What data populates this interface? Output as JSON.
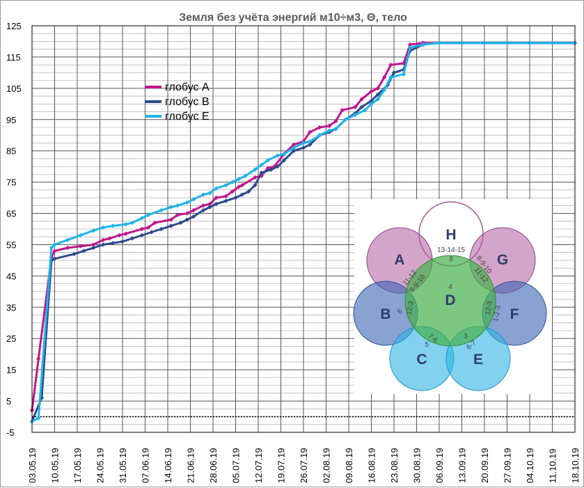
{
  "chart_data": {
    "type": "line",
    "title": "Земля  без учёта  энергий м10÷м3, Θ, тело",
    "ylim": [
      -5,
      125
    ],
    "yticks": [
      "-5",
      "5",
      "15",
      "25",
      "35",
      "45",
      "55",
      "65",
      "75",
      "85",
      "95",
      "105",
      "115",
      "125"
    ],
    "xlabels": [
      "03.05.19",
      "10.05.19",
      "17.05.19",
      "24.05.19",
      "31.05.19",
      "07.06.19",
      "14.06.19",
      "21.06.19",
      "28.06.19",
      "05.07.19",
      "12.07.19",
      "19.07.19",
      "26.07.19",
      "02.08.19",
      "09.08.19",
      "16.08.19",
      "23.08.19",
      "30.08.19",
      "06.09.19",
      "13.09.19",
      "20.09.19",
      "27.09.19",
      "04.10.19",
      "11.10.19",
      "18.10.19"
    ],
    "grid": true,
    "legend_position": "upper-left",
    "series": [
      {
        "name": "глобус A",
        "color": "#c0168c",
        "x": [
          0,
          2,
          6,
          7,
          11,
          15,
          19,
          22,
          24,
          27,
          29,
          34,
          36,
          38,
          43,
          45,
          48,
          50,
          53,
          55,
          57,
          60,
          62,
          64,
          65,
          69,
          71,
          73,
          75,
          78,
          81,
          84,
          86,
          89,
          92,
          94,
          96,
          100,
          102,
          105,
          107,
          109,
          111,
          115,
          117,
          121,
          126,
          133,
          140,
          147,
          154,
          161,
          168
        ],
        "y": [
          2,
          18.5,
          51,
          53,
          54,
          54.5,
          55,
          56.5,
          57,
          58,
          58.5,
          60,
          60.5,
          62,
          63,
          64.5,
          65,
          66,
          67.5,
          68,
          70,
          70.5,
          72,
          73.5,
          74,
          76.5,
          77,
          79.5,
          80,
          84,
          87,
          88,
          91,
          92.5,
          93,
          94.5,
          98,
          99,
          101.5,
          104,
          105,
          108.5,
          112.5,
          113,
          119,
          119.5,
          119.5,
          119.5,
          119.5,
          119.5,
          119.5,
          119.5,
          119.5
        ]
      },
      {
        "name": "глобус B",
        "color": "#2e4a8c",
        "x": [
          0,
          3,
          6,
          7,
          13,
          16,
          19,
          22,
          25,
          28,
          31,
          34,
          37,
          40,
          43,
          46,
          48,
          50,
          53,
          55,
          57,
          60,
          63,
          65,
          67,
          69,
          71,
          74,
          76,
          78,
          81,
          84,
          86,
          89,
          92,
          94,
          97,
          100,
          102,
          105,
          107,
          110,
          112,
          115,
          117,
          121,
          126,
          133,
          140,
          147,
          154,
          161,
          168
        ],
        "y": [
          -1.5,
          6,
          50,
          50.5,
          52,
          53,
          54,
          55,
          55.5,
          56,
          57,
          58,
          59,
          60,
          61,
          62,
          63,
          64,
          66,
          67,
          68,
          69,
          70,
          71,
          72,
          74,
          78,
          79,
          80,
          82,
          85,
          86,
          87,
          90,
          91,
          92,
          95,
          97,
          99,
          101,
          103,
          106,
          110,
          111,
          117,
          119,
          119.5,
          119.5,
          119.5,
          119.5,
          119.5,
          119.5,
          119.5
        ]
      },
      {
        "name": "глобус E",
        "color": "#1fb4e8",
        "x": [
          0,
          2,
          6,
          7,
          11,
          15,
          19,
          22,
          25,
          29,
          31,
          34,
          36,
          40,
          43,
          45,
          48,
          50,
          53,
          55,
          57,
          60,
          62,
          64,
          66,
          69,
          71,
          73,
          76,
          78,
          81,
          84,
          86,
          89,
          92,
          94,
          97,
          100,
          103,
          105,
          107,
          109,
          111,
          115,
          117,
          121,
          126,
          133,
          140,
          147,
          154,
          161,
          168
        ],
        "y": [
          -1.5,
          -0.5,
          54,
          55,
          56.5,
          58,
          59.5,
          60.5,
          61,
          61.5,
          62,
          63.5,
          64.5,
          66,
          67,
          67.5,
          68.5,
          69.5,
          71,
          71.5,
          73,
          74,
          75,
          76,
          77,
          79,
          80.5,
          82,
          83.5,
          84,
          86,
          87.5,
          88,
          90,
          91.5,
          92,
          95,
          96.5,
          98,
          100,
          101.5,
          104.5,
          108.5,
          109.5,
          118,
          119,
          119.5,
          119.5,
          119.5,
          119.5,
          119.5,
          119.5,
          119.5
        ]
      }
    ]
  },
  "inset": {
    "circles": [
      {
        "label": "H",
        "color": "#ffffff"
      },
      {
        "label": "A",
        "color": "#b05b9f"
      },
      {
        "label": "G",
        "color": "#b05b9f"
      },
      {
        "label": "D",
        "color": "#45b04a"
      },
      {
        "label": "B",
        "color": "#3a64b4"
      },
      {
        "label": "F",
        "color": "#3a64b4"
      },
      {
        "label": "C",
        "color": "#2eb4e4"
      },
      {
        "label": "E",
        "color": "#2eb4e4"
      }
    ],
    "numbers": {
      "h": "13-14-15",
      "hd": "8",
      "ad1": "11-12",
      "ad2": "8-9-10",
      "gd1": "8-9-10",
      "gd2": "11-12",
      "d": "4",
      "b": "8",
      "bd": "12-3",
      "fd": "12-3",
      "f": "1-2-3",
      "cd": "7-6",
      "c": "5",
      "ed": "3",
      "e": "6-7"
    }
  }
}
